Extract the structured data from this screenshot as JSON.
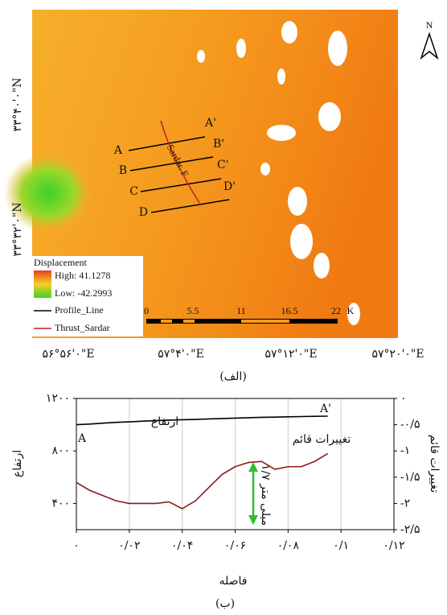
{
  "map": {
    "caption": "(الف)",
    "x_labels": [
      "۵۶°۵۶'۰\"E",
      "۵۷°۴'۰\"E",
      "۵۷°۱۲'۰\"E",
      "۵۷°۲۰'۰\"E"
    ],
    "y_labels": [
      "۳۳°۴۰'۰\"N",
      "۳۳°۳۲'۰\"N"
    ],
    "north": "N",
    "fault_label": "Sardar. F",
    "profile_labels": [
      "A",
      "A'",
      "B",
      "B'",
      "C",
      "C'",
      "D",
      "D'"
    ],
    "legend": {
      "title": "Displacement",
      "high": "High: 41.1278",
      "low": "Low: -42.2993",
      "profile_line": "Profile_Line",
      "thrust": "Thrust_Sardar"
    },
    "scale_labels": [
      "0",
      "5.5",
      "11",
      "16.5",
      "22",
      "K"
    ]
  },
  "chart_data": {
    "type": "line",
    "caption": "(ب)",
    "x_label": "فاصله",
    "y_label": "ارتفاع",
    "y2_label": "تغییرات قائم",
    "x": [
      0,
      0.005,
      0.01,
      0.015,
      0.02,
      0.025,
      0.03,
      0.035,
      0.04,
      0.045,
      0.05,
      0.055,
      0.06,
      0.065,
      0.07,
      0.075,
      0.08,
      0.085,
      0.09,
      0.095
    ],
    "series": [
      {
        "name": "ارتفاع",
        "color": "#000000",
        "values": [
          1000,
          1005,
          1012,
          1018,
          1022,
          1027,
          1031,
          1035,
          1038,
          1040,
          1044,
          1047,
          1050,
          1053,
          1056,
          1058,
          1060,
          1062,
          1064,
          1065
        ]
      },
      {
        "name": "تغییرات قائم",
        "color": "#8b1a1a",
        "axis": "y2",
        "values": [
          -1.6,
          -1.75,
          -1.85,
          -1.95,
          -2.0,
          -2.0,
          -2.0,
          -1.97,
          -2.1,
          -1.95,
          -1.7,
          -1.45,
          -1.3,
          -1.22,
          -1.2,
          -1.35,
          -1.3,
          -1.3,
          -1.2,
          -1.05
        ]
      }
    ],
    "annotations": {
      "start": "A",
      "end": "A'",
      "arrow": "۱/۷ میلی متر"
    },
    "xlim": [
      0,
      0.12
    ],
    "xticks": [
      {
        "value": 0,
        "label": "۰"
      },
      {
        "value": 0.02,
        "label": "۰/۰۲"
      },
      {
        "value": 0.04,
        "label": "۰/۰۴"
      },
      {
        "value": 0.06,
        "label": "۰/۰۶"
      },
      {
        "value": 0.08,
        "label": "۰/۰۸"
      },
      {
        "value": 0.1,
        "label": "۰/۱"
      },
      {
        "value": 0.12,
        "label": "۰/۱۲"
      }
    ],
    "ylim": [
      200,
      1200
    ],
    "yticks": [
      {
        "value": 400,
        "label": "۴۰۰"
      },
      {
        "value": 800,
        "label": "۸۰۰"
      },
      {
        "value": 1200,
        "label": "۱۲۰۰"
      }
    ],
    "y2lim": [
      -2.5,
      0
    ],
    "y2ticks": [
      {
        "value": 0,
        "label": "۰"
      },
      {
        "value": -0.5,
        "label": "-۰/۵"
      },
      {
        "value": -1,
        "label": "-۱"
      },
      {
        "value": -1.5,
        "label": "-۱/۵"
      },
      {
        "value": -2,
        "label": "-۲"
      },
      {
        "value": -2.5,
        "label": "-۲/۵"
      }
    ],
    "grid": true
  }
}
